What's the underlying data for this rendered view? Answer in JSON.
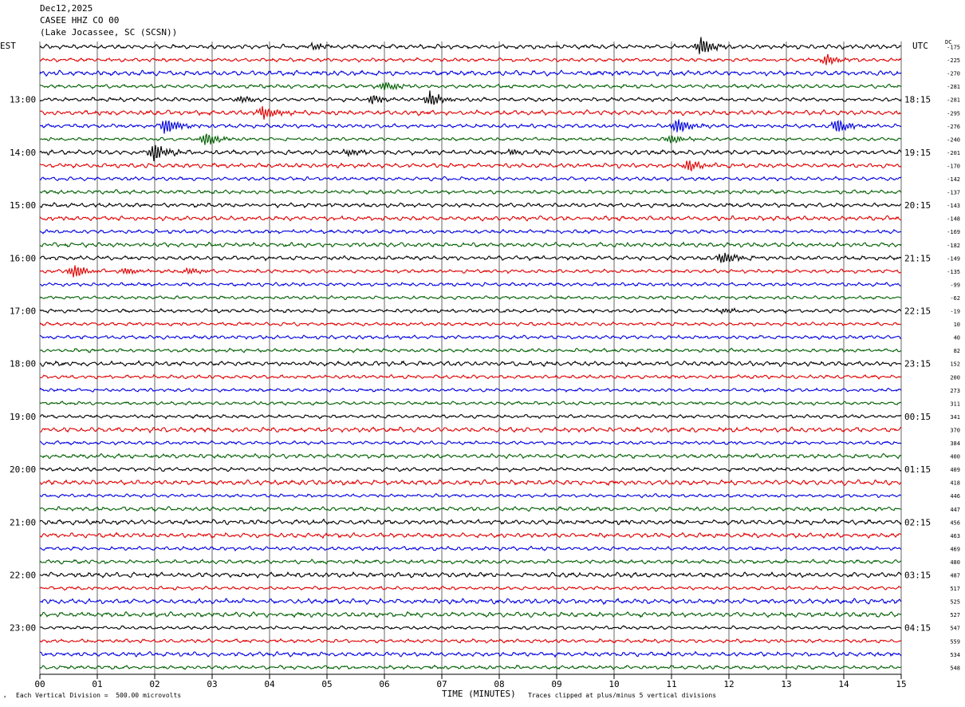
{
  "header": {
    "date": "Dec12,2025",
    "station": "CASEE HHZ CO 00",
    "location": "(Lake Jocassee, SC (SCSN))"
  },
  "left_tz": "EST",
  "right_tz": "UTC",
  "dc_label": "DC",
  "footer": {
    "scale": "Each Vertical Division =  500.00 microvolts",
    "clip": "Traces clipped at plus/minus 5 vertical divisions",
    "xlabel": "TIME (MINUTES)"
  },
  "chart_data": {
    "type": "line",
    "x_ticks": [
      "00",
      "01",
      "02",
      "03",
      "04",
      "05",
      "06",
      "07",
      "08",
      "09",
      "10",
      "11",
      "12",
      "13",
      "14",
      "15"
    ],
    "xlim": [
      0,
      15
    ],
    "left_hour_labels": [
      "13:00",
      "14:00",
      "15:00",
      "16:00",
      "17:00",
      "18:00",
      "19:00",
      "20:00",
      "21:00",
      "22:00",
      "23:00"
    ],
    "right_hour_labels": [
      "18:15",
      "19:15",
      "20:15",
      "21:15",
      "22:15",
      "23:15",
      "00:15",
      "01:15",
      "02:15",
      "03:15",
      "04:15"
    ],
    "dc_offsets": [
      "-175",
      "-225",
      "-270",
      "-281",
      "-281",
      "-295",
      "-276",
      "-240",
      "-201",
      "-170",
      "-142",
      "-137",
      "-143",
      "-148",
      "-169",
      "-182",
      "-149",
      "-135",
      "-99",
      "-62",
      "-19",
      "10",
      "40",
      "82",
      "152",
      "200",
      "273",
      "311",
      "341",
      "370",
      "384",
      "400",
      "409",
      "418",
      "446",
      "447",
      "456",
      "463",
      "469",
      "480",
      "487",
      "517",
      "525",
      "527",
      "547",
      "559",
      "534",
      "548"
    ],
    "trace_colors": [
      "#000000",
      "#e00000",
      "#0000e0",
      "#006000"
    ],
    "grid": true,
    "events": [
      {
        "trace": 0,
        "minute": 4.8,
        "amp": 0.35
      },
      {
        "trace": 0,
        "minute": 11.5,
        "amp": 1.0
      },
      {
        "trace": 1,
        "minute": 13.7,
        "amp": 0.6
      },
      {
        "trace": 3,
        "minute": 6.0,
        "amp": 0.6
      },
      {
        "trace": 4,
        "minute": 3.5,
        "amp": 0.4
      },
      {
        "trace": 4,
        "minute": 5.8,
        "amp": 0.5
      },
      {
        "trace": 4,
        "minute": 6.8,
        "amp": 0.9
      },
      {
        "trace": 5,
        "minute": 3.9,
        "amp": 0.9
      },
      {
        "trace": 6,
        "minute": 2.2,
        "amp": 1.0
      },
      {
        "trace": 6,
        "minute": 11.1,
        "amp": 1.0
      },
      {
        "trace": 6,
        "minute": 13.9,
        "amp": 0.9
      },
      {
        "trace": 7,
        "minute": 2.9,
        "amp": 0.8
      },
      {
        "trace": 7,
        "minute": 11.0,
        "amp": 0.5
      },
      {
        "trace": 8,
        "minute": 2.0,
        "amp": 1.0
      },
      {
        "trace": 8,
        "minute": 5.4,
        "amp": 0.35
      },
      {
        "trace": 8,
        "minute": 8.2,
        "amp": 0.3
      },
      {
        "trace": 9,
        "minute": 11.3,
        "amp": 0.7
      },
      {
        "trace": 16,
        "minute": 11.9,
        "amp": 0.8
      },
      {
        "trace": 17,
        "minute": 0.6,
        "amp": 0.8
      },
      {
        "trace": 17,
        "minute": 1.5,
        "amp": 0.4
      },
      {
        "trace": 17,
        "minute": 2.6,
        "amp": 0.35
      },
      {
        "trace": 20,
        "minute": 11.9,
        "amp": 0.3
      }
    ]
  }
}
